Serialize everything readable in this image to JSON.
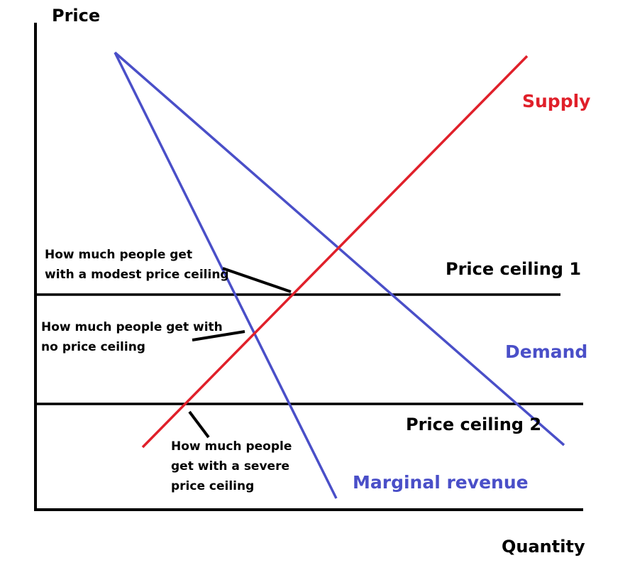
{
  "axes": {
    "y_label": "Price",
    "x_label": "Quantity"
  },
  "curves": {
    "supply": {
      "label": "Supply",
      "color": "#e0202a"
    },
    "demand": {
      "label": "Demand",
      "color": "#4a4fc8"
    },
    "marginal_revenue": {
      "label": "Marginal revenue",
      "color": "#4a4fc8"
    }
  },
  "price_ceilings": [
    {
      "label": "Price ceiling 1",
      "color": "#000000"
    },
    {
      "label": "Price ceiling 2",
      "color": "#000000"
    }
  ],
  "annotations": {
    "modest": [
      "How much people get",
      "with a modest price ceiling"
    ],
    "none": [
      "How much people get with",
      "no price ceiling"
    ],
    "severe": [
      "How much people",
      "get with a severe",
      "price ceiling"
    ]
  }
}
